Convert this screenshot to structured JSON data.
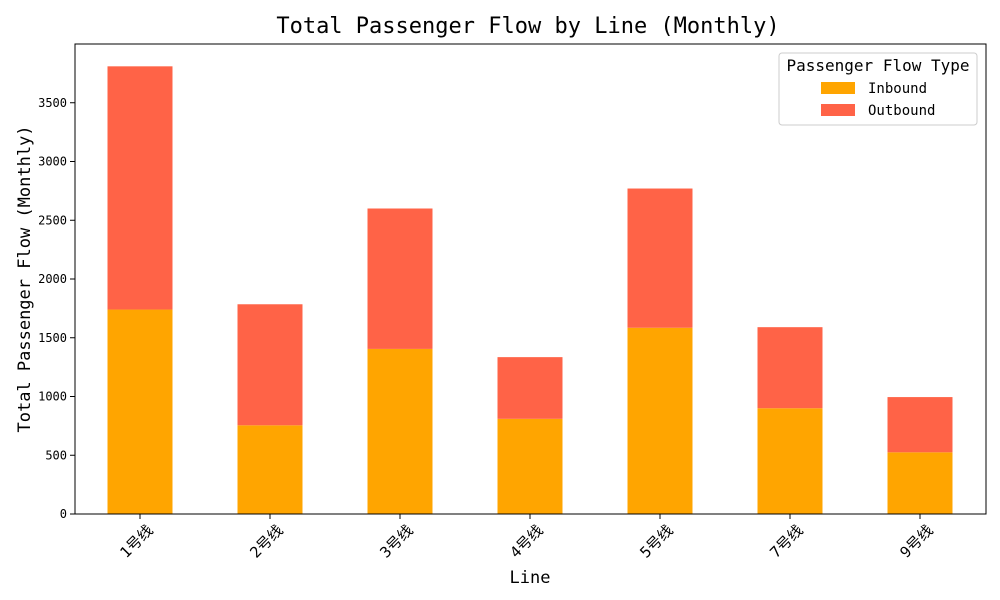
{
  "chart_data": {
    "type": "bar",
    "stacked": true,
    "title": "Total Passenger Flow by Line (Monthly)",
    "xlabel": "Line",
    "ylabel": "Total Passenger Flow (Monthly)",
    "categories": [
      "1号线",
      "2号线",
      "3号线",
      "4号线",
      "5号线",
      "7号线",
      "9号线"
    ],
    "series": [
      {
        "name": "Inbound",
        "color": "#FFA500",
        "values": [
          1740,
          755,
          1405,
          810,
          1585,
          900,
          525
        ]
      },
      {
        "name": "Outbound",
        "color": "#FF6347",
        "values": [
          2070,
          1030,
          1195,
          525,
          1185,
          690,
          470
        ]
      }
    ],
    "ylim": [
      0,
      4000
    ],
    "yticks": [
      0,
      500,
      1000,
      1500,
      2000,
      2500,
      3000,
      3500
    ],
    "grid": false,
    "legend": {
      "title": "Passenger Flow Type",
      "placement": "top-right"
    }
  }
}
